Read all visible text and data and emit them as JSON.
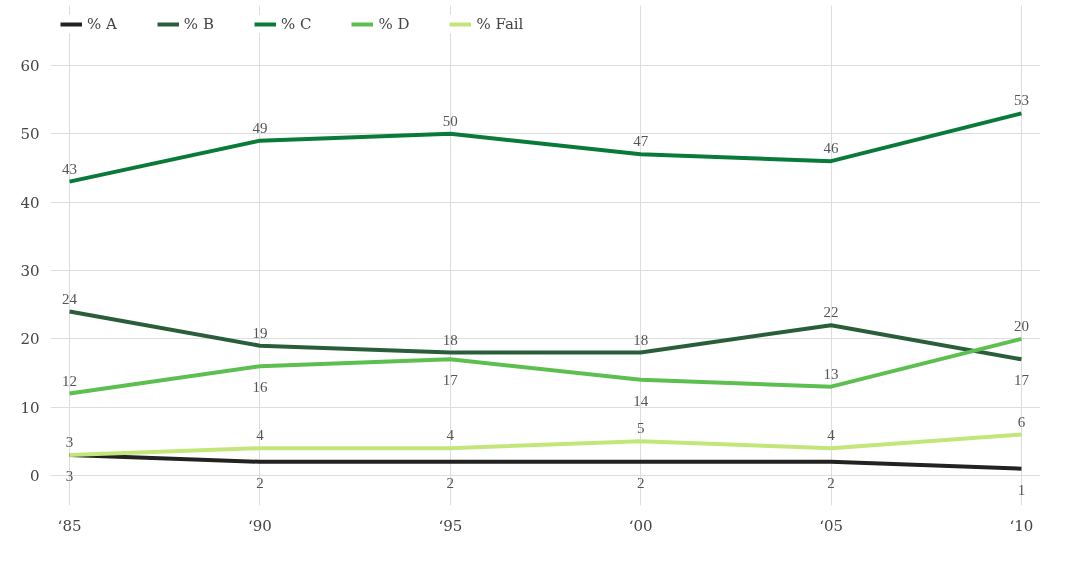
{
  "chart_data": {
    "type": "line",
    "categories": [
      "‘85",
      "‘90",
      "‘95",
      "‘00",
      "‘05",
      "‘10"
    ],
    "series": [
      {
        "name": "% A",
        "color": "#222222",
        "values": [
          3,
          2,
          2,
          2,
          2,
          1
        ]
      },
      {
        "name": "% B",
        "color": "#2a5e3a",
        "values": [
          24,
          19,
          18,
          18,
          22,
          17
        ]
      },
      {
        "name": "% C",
        "color": "#0a7a3a",
        "values": [
          43,
          49,
          50,
          47,
          46,
          53
        ]
      },
      {
        "name": "% D",
        "color": "#5cbf4f",
        "values": [
          12,
          16,
          17,
          14,
          13,
          20
        ]
      },
      {
        "name": "% Fail",
        "color": "#c3e67a",
        "values": [
          3,
          4,
          4,
          5,
          4,
          6
        ]
      }
    ],
    "ylim": [
      0,
      60
    ],
    "yticks": [
      0,
      10,
      20,
      30,
      40,
      50,
      60
    ],
    "grid": true,
    "legend": "top left",
    "data_labels": true,
    "marker": "none",
    "line_style": "solid"
  }
}
